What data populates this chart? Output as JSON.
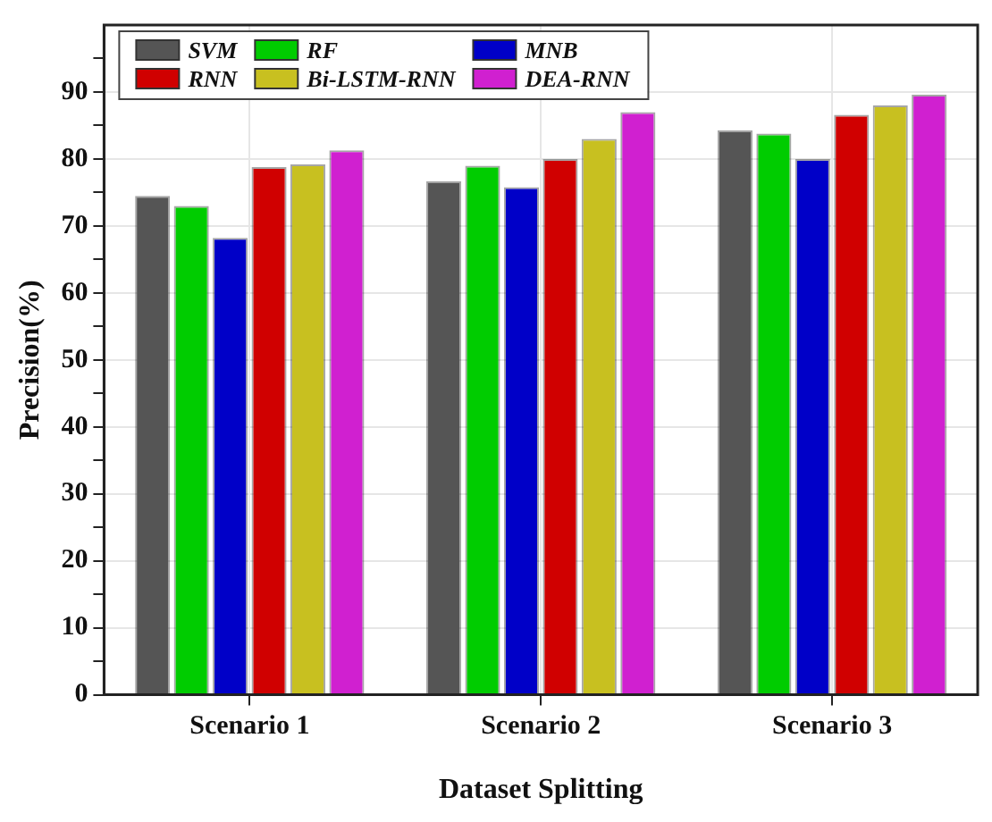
{
  "chart_data": {
    "type": "bar",
    "xlabel": "Dataset Splitting",
    "ylabel": "Precision(%)",
    "categories": [
      "Scenario 1",
      "Scenario 2",
      "Scenario 3"
    ],
    "series": [
      {
        "name": "SVM",
        "color": "#555555",
        "values": [
          74.5,
          76.7,
          84.3
        ]
      },
      {
        "name": "RF",
        "color": "#00cc00",
        "values": [
          73,
          79,
          83.8
        ]
      },
      {
        "name": "MNB",
        "color": "#0000c8",
        "values": [
          68.2,
          75.8,
          80
        ]
      },
      {
        "name": "RNN",
        "color": "#d00000",
        "values": [
          78.8,
          80,
          86.6
        ]
      },
      {
        "name": "Bi-LSTM-RNN",
        "color": "#c8c020",
        "values": [
          79.2,
          83,
          88
        ]
      },
      {
        "name": "DEA-RNN",
        "color": "#d020d0",
        "values": [
          81.3,
          87,
          89.6
        ]
      }
    ],
    "ylim": [
      0,
      100
    ],
    "yticks": [
      0,
      {
        "value": 5,
        "label": null
      },
      10,
      {
        "value": 15,
        "label": null
      },
      20,
      {
        "value": 25,
        "label": null
      },
      30,
      {
        "value": 35,
        "label": null
      },
      40,
      {
        "value": 45,
        "label": null
      },
      50,
      {
        "value": 55,
        "label": null
      },
      60,
      {
        "value": 65,
        "label": null
      },
      70,
      {
        "value": 75,
        "label": null
      },
      80,
      {
        "value": 85,
        "label": null
      },
      90,
      {
        "value": 95,
        "label": null
      }
    ],
    "grid": true,
    "legend": "top left"
  }
}
